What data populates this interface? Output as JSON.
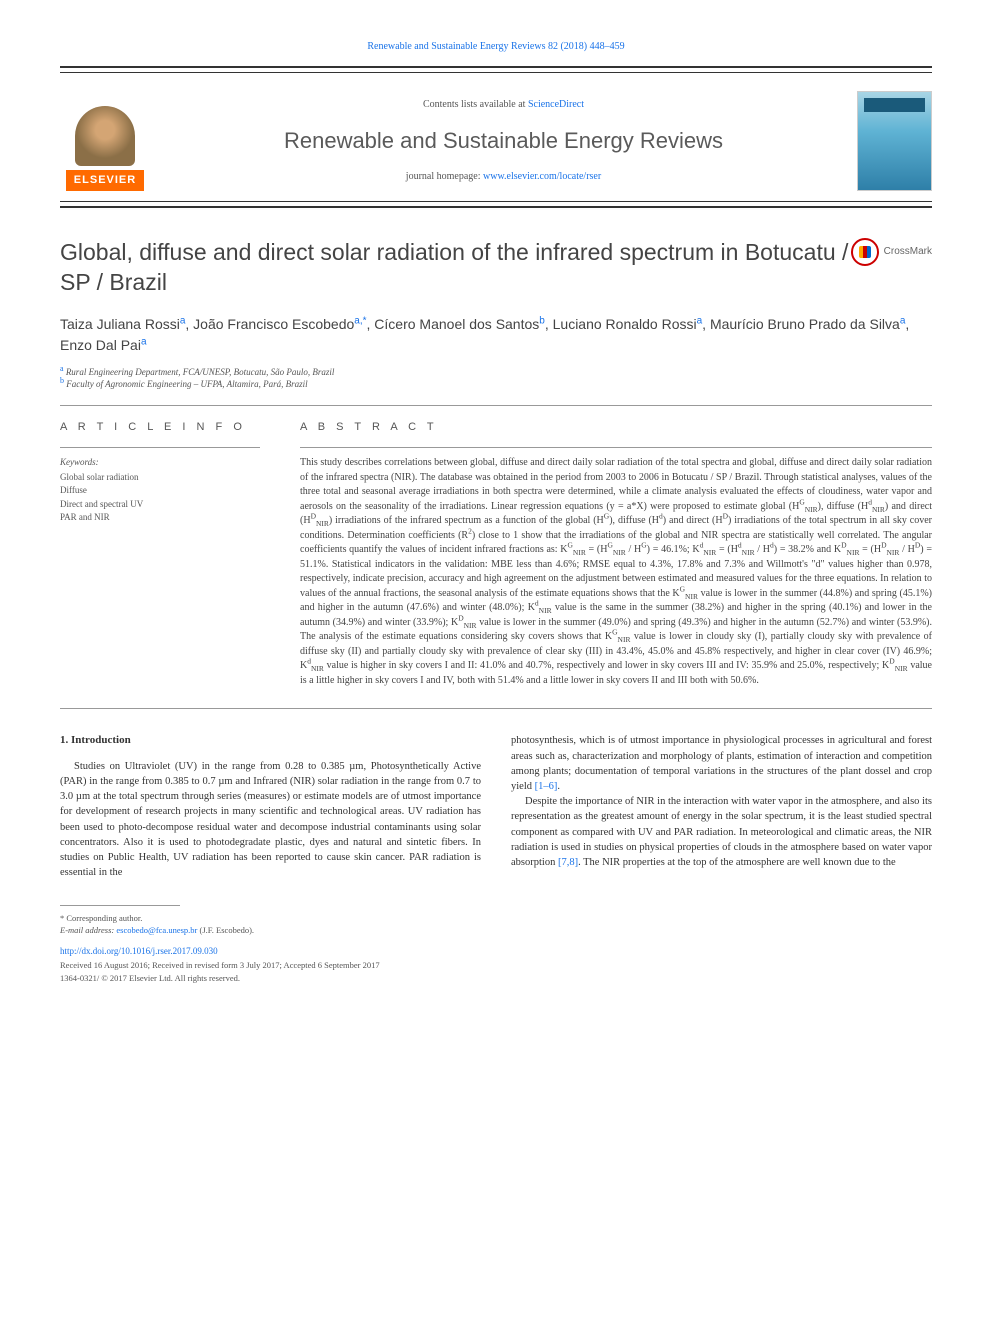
{
  "header": {
    "citation": "Renewable and Sustainable Energy Reviews 82 (2018) 448–459",
    "contents_prefix": "Contents lists available at ",
    "contents_link": "ScienceDirect",
    "journal_name": "Renewable and Sustainable Energy Reviews",
    "homepage_prefix": "journal homepage: ",
    "homepage_link": "www.elsevier.com/locate/rser",
    "elsevier": "ELSEVIER",
    "crossmark": "CrossMark"
  },
  "article": {
    "title": "Global, diffuse and direct solar radiation of the infrared spectrum in Botucatu / SP / Brazil",
    "authors_html": "Taiza Juliana Rossi<sup>a</sup>, João Francisco Escobedo<sup>a,*</sup>, Cícero Manoel dos Santos<sup>b</sup>, Luciano Ronaldo Rossi<sup>a</sup>, Maurício Bruno Prado da Silva<sup>a</sup>, Enzo Dal Pai<sup>a</sup>",
    "affiliations": [
      {
        "sup": "a",
        "text": "Rural Engineering Department, FCA/UNESP, Botucatu, São Paulo, Brazil"
      },
      {
        "sup": "b",
        "text": "Faculty of Agronomic Engineering – UFPA, Altamira, Pará, Brazil"
      }
    ]
  },
  "info": {
    "heading": "A R T I C L E  I N F O",
    "keywords_label": "Keywords:",
    "keywords": [
      "Global solar radiation",
      "Diffuse",
      "Direct and spectral UV",
      "PAR and NIR"
    ]
  },
  "abstract": {
    "heading": "A B S T R A C T",
    "text_html": "This study describes correlations between global, diffuse and direct daily solar radiation of the total spectra and global, diffuse and direct daily solar radiation of the infrared spectra (NIR). The database was obtained in the period from 2003 to 2006 in Botucatu / SP / Brazil. Through statistical analyses, values of the three total and seasonal average irradiations in both spectra were determined, while a climate analysis evaluated the effects of cloudiness, water vapor and aerosols on the seasonality of the irradiations. Linear regression equations (y = a*X) were proposed to estimate global (H<sup>G</sup><sub>NIR</sub>), diffuse (H<sup>d</sup><sub>NIR</sub>) and direct (H<sup>D</sup><sub>NIR</sub>) irradiations of the infrared spectrum as a function of the global (H<sup>G</sup>), diffuse (H<sup>d</sup>) and direct (H<sup>D</sup>) irradiations of the total spectrum in all sky cover conditions. Determination coefficients (R<sup>2</sup>) close to 1 show that the irradiations of the global and NIR spectra are statistically well correlated. The angular coefficients quantify the values of incident infrared fractions as: K<sup>G</sup><sub>NIR</sub> = (H<sup>G</sup><sub>NIR</sub> / H<sup>G</sup>) = 46.1%; K<sup>d</sup><sub>NIR</sub> = (H<sup>d</sup><sub>NIR</sub> / H<sup>d</sup>) = 38.2% and K<sup>D</sup><sub>NIR</sub> = (H<sup>D</sup><sub>NIR</sub> / H<sup>D</sup>) = 51.1%. Statistical indicators in the validation: MBE less than 4.6%; RMSE equal to 4.3%, 17.8% and 7.3% and Willmott's \"d\" values higher than 0.978, respectively, indicate precision, accuracy and high agreement on the adjustment between estimated and measured values for the three equations. In relation to values of the annual fractions, the seasonal analysis of the estimate equations shows that the K<sup>G</sup><sub>NIR</sub> value is lower in the summer (44.8%) and spring (45.1%) and higher in the autumn (47.6%) and winter (48.0%); K<sup>d</sup><sub>NIR</sub> value is the same in the summer (38.2%) and higher in the spring (40.1%) and lower in the autumn (34.9%) and winter (33.9%); K<sup>D</sup><sub>NIR</sub> value is lower in the summer (49.0%) and spring (49.3%) and higher in the autumn (52.7%) and winter (53.9%). The analysis of the estimate equations considering sky covers shows that K<sup>G</sup><sub>NIR</sub> value is lower in cloudy sky (I), partially cloudy sky with prevalence of diffuse sky (II) and partially cloudy sky with prevalence of clear sky (III) in 43.4%, 45.0% and 45.8% respectively, and higher in clear cover (IV) 46.9%; K<sup>d</sup><sub>NIR</sub> value is higher in sky covers I and II: 41.0% and 40.7%, respectively and lower in sky covers III and IV: 35.9% and 25.0%, respectively; K<sup>D</sup><sub>NIR</sub> value is a little higher in sky covers I and IV, both with 51.4% and a little lower in sky covers II and III both with 50.6%."
  },
  "body": {
    "section_heading": "1. Introduction",
    "para1": "Studies on Ultraviolet (UV) in the range from 0.28 to 0.385 µm, Photosynthetically Active (PAR) in the range from 0.385 to 0.7 µm and Infrared (NIR) solar radiation in the range from 0.7 to 3.0 µm at the total spectrum through series (measures) or estimate models are of utmost importance for development of research projects in many scientific and technological areas. UV radiation has been used to photo-decompose residual water and decompose industrial contaminants using solar concentrators. Also it is used to photodegradate plastic, dyes and natural and sintetic fibers. In studies on Public Health, UV radiation has been reported to cause skin cancer. PAR radiation is essential in the",
    "para2_html": "photosynthesis, which is of utmost importance in physiological processes in agricultural and forest areas such as, characterization and morphology of plants, estimation of interaction and competition among plants; documentation of temporal variations in the structures of the plant dossel and crop yield <a href=\"#\">[1–6]</a>.",
    "para3_html": "Despite the importance of NIR in the interaction with water vapor in the atmosphere, and also its representation as the greatest amount of energy in the solar spectrum, it is the least studied spectral component as compared with UV and PAR radiation. In meteorological and climatic areas, the NIR radiation is used in studies on physical properties of clouds in the atmosphere based on water vapor absorption <a href=\"#\">[7,8]</a>. The NIR properties at the top of the atmosphere are well known due to the"
  },
  "footer": {
    "corresponding": "* Corresponding author.",
    "email_label": "E-mail address: ",
    "email": "escobedo@fca.unesp.br",
    "email_suffix": " (J.F. Escobedo).",
    "doi": "http://dx.doi.org/10.1016/j.rser.2017.09.030",
    "received": "Received 16 August 2016; Received in revised form 3 July 2017; Accepted 6 September 2017",
    "copyright": "1364-0321/ © 2017 Elsevier Ltd. All rights reserved."
  }
}
